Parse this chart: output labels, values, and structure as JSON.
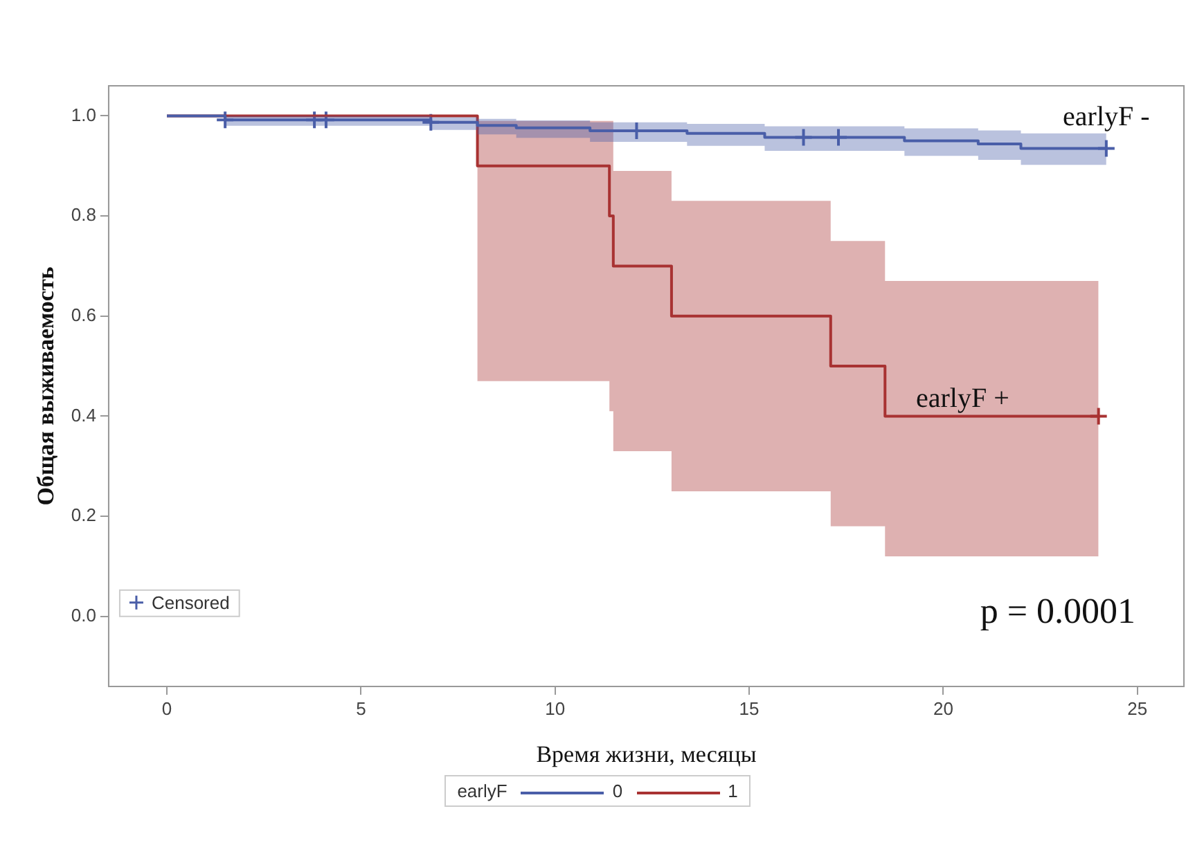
{
  "chart_data": {
    "type": "step",
    "xlabel": "Время жизни, месяцы",
    "ylabel": "Общая выживаемость",
    "legend_title": "earlyF",
    "legend": "bottom",
    "grid": false,
    "xlim": [
      -1.5,
      26.2
    ],
    "xticks": [
      0,
      5,
      10,
      15,
      20,
      25
    ],
    "ylim": [
      -0.14,
      1.06
    ],
    "yticks": [
      {
        "value": 0,
        "label": "0.0"
      },
      {
        "value": 0.2,
        "label": "0.2"
      },
      {
        "value": 0.4,
        "label": "0.4"
      },
      {
        "value": 0.6,
        "label": "0.6"
      },
      {
        "value": 0.8,
        "label": "0.8"
      },
      {
        "value": 1,
        "label": "1.0"
      }
    ],
    "series": [
      {
        "name": "0",
        "type": "step",
        "color": "#4a5ea8",
        "x": [
          0,
          1.5,
          6.8,
          8.0,
          9.0,
          10.9,
          13.4,
          15.4,
          19.0,
          20.9,
          22.0,
          24.2
        ],
        "values": [
          1.0,
          0.992,
          0.987,
          0.981,
          0.976,
          0.97,
          0.965,
          0.957,
          0.95,
          0.944,
          0.935,
          0.935
        ],
        "lower": [
          1.0,
          0.98,
          0.972,
          0.963,
          0.956,
          0.948,
          0.94,
          0.93,
          0.92,
          0.912,
          0.902,
          0.902
        ],
        "upper": [
          1.0,
          1.0,
          0.997,
          0.994,
          0.991,
          0.987,
          0.984,
          0.979,
          0.975,
          0.971,
          0.965,
          0.965
        ]
      },
      {
        "name": "1",
        "type": "step",
        "color": "#a83232",
        "x": [
          0,
          8,
          11.4,
          11.5,
          13,
          17.1,
          18.5,
          24
        ],
        "values": [
          1,
          0.9,
          0.8,
          0.7,
          0.6,
          0.5,
          0.4,
          0.4
        ],
        "lower": [
          1,
          0.47,
          0.41,
          0.33,
          0.25,
          0.18,
          0.12,
          0.12
        ],
        "upper": [
          1,
          0.99,
          0.99,
          0.89,
          0.83,
          0.75,
          0.67,
          0.67
        ]
      },
      {
        "name": "Censored",
        "type": "scatter",
        "marker": "cross",
        "x": [
          1.5,
          3.8,
          4.1,
          6.8,
          12.1,
          16.4,
          17.3,
          24.2,
          24
        ],
        "values": [
          0.992,
          0.992,
          0.992,
          0.987,
          0.97,
          0.957,
          0.957,
          0.935,
          0.4
        ],
        "colors": [
          "#4a5ea8",
          "#4a5ea8",
          "#4a5ea8",
          "#4a5ea8",
          "#4a5ea8",
          "#4a5ea8",
          "#4a5ea8",
          "#4a5ea8",
          "#a83232"
        ]
      }
    ],
    "annotations": [
      {
        "text": "earlyF -",
        "x": 24.2,
        "y": 0.935
      },
      {
        "text": "earlyF +",
        "x": 20.5,
        "y": 0.4
      },
      "p = 0.0001"
    ]
  }
}
